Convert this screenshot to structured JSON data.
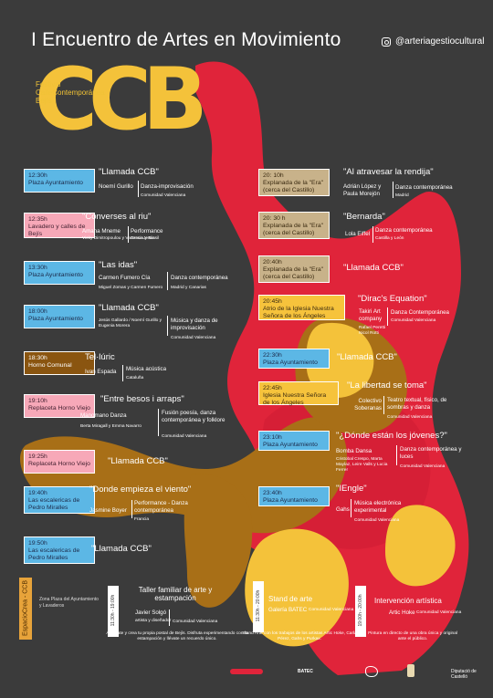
{
  "header": {
    "title": "I Encuentro de Artes en Movimiento",
    "instagram": "@arteriagestiocultural",
    "festival_lines": [
      "Festival",
      "CalleContemporánea",
      "Bejís"
    ],
    "logo_text": "CCB"
  },
  "left_events": [
    {
      "time": "12:30h",
      "place": "Plaza Ayuntamiento",
      "title": "\"Llamada CCB\"",
      "artist": "Noemí Gurillo",
      "genre": "Danza-improvisación",
      "origin": "Comunidad Valenciana"
    },
    {
      "time": "12:35h",
      "place": "Lavadero y calles de Bejís",
      "title": "\"Converses al riu\"",
      "artist": "Amana Mneme",
      "genre": "Performance",
      "artist2": "Vicky Dimitropoulou y Vanessa Jesús",
      "origin": "Grecia y Brasil"
    },
    {
      "time": "13:30h",
      "place": "Plaza Ayuntamiento",
      "title": "\"Las idas\"",
      "artist": "Carmen Fumero Cía",
      "genre": "Danza contemporánea",
      "artist2": "Miguel Zomas y Carmen Fumero",
      "origin": "Madrid y Canarias"
    },
    {
      "time": "18:00h",
      "place": "Plaza Ayuntamiento",
      "title": "\"Llamada CCB\"",
      "artist": "Jesús Gallardo / Noemí Gurillo y Eugenia Morera",
      "genre": "Música y danza de improvisación",
      "origin": "Comunidad Valenciana"
    },
    {
      "time": "18:30h",
      "place": "Horno Comunal",
      "title": "Tel·lúric",
      "artist": "Ivan Espada",
      "genre": "Música acústica",
      "origin": "Cataluña"
    },
    {
      "time": "19:10h",
      "place": "Replaceta Horno Viejo",
      "title": "\"Entre besos i arraps\"",
      "artist": "Manomano Danza",
      "genre": "Fusión poesía, danza contemporánea y folklore",
      "artist2": "Berta Miragall y Emma Navarro",
      "origin": "Comunidad Valenciana"
    },
    {
      "time": "19:25h",
      "place": "Replaceta Horno Viejo",
      "title": "\"Llamada CCB\""
    },
    {
      "time": "19:40h",
      "place": "Las escalericas de Pedro Miralles",
      "title": "\"Donde empieza el viento\"",
      "artist": "Jasmine Boyer",
      "genre": "Performance - Danza contemporánea",
      "origin": "Francia"
    },
    {
      "time": "19:50h",
      "place": "Las escalericas de Pedro Miralles",
      "title": "\"Llamada CCB\""
    }
  ],
  "right_events": [
    {
      "time": "20: 10h",
      "place": "Explanada de la \"Era\" (cerca del Castillo)",
      "title": "\"Al atravesar la rendija\"",
      "artist": "Adrián López y Paula Morejón",
      "genre": "Danza contemporánea",
      "origin": "Madrid"
    },
    {
      "time": "20: 30 h",
      "place": "Explanada de la \"Era\" (cerca del Castillo)",
      "title": "\"Bernarda\"",
      "artist": "Lola Eiffel",
      "genre": "Danza contemporánea",
      "origin": "Castilla y León"
    },
    {
      "time": "20:40h",
      "place": "Explanada de la \"Era\" (cerca del Castillo)",
      "title": "\"Llamada CCB\""
    },
    {
      "time": "20:45h",
      "place": "Atrio de la Iglesia Nuestra Señora de los Ángeles",
      "title": "\"Dirac's Equation\"",
      "artist": "Takiri Art company",
      "genre": "Danza Contemporánea",
      "artist2": "Rafael Peretti Nicol Rotti",
      "origin": "Comunidad Valenciana"
    },
    {
      "time": "22:30h",
      "place": "Plaza Ayuntamiento",
      "title": "\"Llamada CCB\""
    },
    {
      "time": "22:45h",
      "place": "Iglesia Nuestra Señora de los Ángeles",
      "title": "\"La libertad se toma\"",
      "artist": "Colectivo Soberanas",
      "genre": "Teatro textual, físico, de sombras y danza",
      "origin": "Comunidad Valenciana"
    },
    {
      "time": "23:10h",
      "place": "Plaza Ayuntamiento",
      "title": "\"¿Dónde están los jóvenes?\"",
      "artist": "Bomba Dansa",
      "genre": "Danza contemporánea y luces",
      "artist2": "Cristobal Crespo, Marta Maylaz, Leire Valls y Lucia Ferrer",
      "origin": "Comunidad Valenciana"
    },
    {
      "time": "23:40h",
      "place": "Plaza Ayuntamiento",
      "title": "\"IEngle\"",
      "artist": "Gahs",
      "genre": "Música electrónica experimental",
      "origin": "Comunidad Valenciana"
    }
  ],
  "espacio": {
    "label": "EspacioCrea - CCB",
    "zone": "Zona Plaza del Ayuntamiento y Lavaderos",
    "items": [
      {
        "time": "11:30h - 19:00h",
        "title": "Taller familiar de arte y estampación",
        "artist": "Javier Solgó",
        "role": "artista y diseñador",
        "origin": "Comunidad Valenciana",
        "desc": "Acércate y crea tu propia postal de Bejís. Disfruta experimentando con la estampación y llévate un recuerdo único."
      },
      {
        "time": "11:30h - 20:00h",
        "title": "Stand de arte",
        "artist": "Galería BATEC",
        "origin": "Comunidad Valenciana",
        "desc": "Stand Arte con los trabajos de los artistas Artic Hoke, Carla Pérez, Gahs y Purkax."
      },
      {
        "time": "19:00h - 20:00h",
        "title": "Intervención artística",
        "artist": "Artic Hoke",
        "origin": "Comunidad Valenciana",
        "desc": "Pintura en directo de una obra única y original ante el público."
      }
    ]
  },
  "logos": {
    "batec": "BATEC",
    "diputacion": "Diputació de Castelló"
  },
  "colors": {
    "bg": "#3b3b3b",
    "red": "#e0243a",
    "yellow": "#f4c23a",
    "brown": "#a86f17",
    "blue": "#5cb7e5"
  }
}
